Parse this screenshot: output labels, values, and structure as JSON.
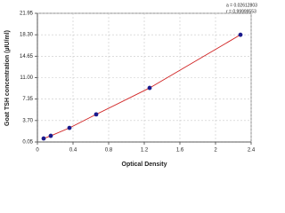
{
  "chart_data": {
    "type": "scatter",
    "x_label": "Optical Density",
    "y_label": "Goat TSH concentration (µIU/ml)",
    "annotations": [
      "a = 0.02612803",
      "r = 0.99999553"
    ],
    "series": [
      {
        "color": "#1a1a8c",
        "line_color": "#d02020",
        "x": [
          0.07,
          0.15,
          0.36,
          0.66,
          1.26,
          2.28
        ],
        "values": [
          0.65,
          1.1,
          2.45,
          4.75,
          9.25,
          18.3
        ]
      }
    ],
    "xlim": [
      0,
      2.4
    ],
    "xticks": [
      0,
      0.4,
      0.8,
      1.2,
      1.6,
      2,
      2.4
    ],
    "ylim": [
      0.05,
      21.95
    ],
    "yticks": [
      {
        "value": 0.05,
        "label": "0.05"
      },
      {
        "value": 3.7,
        "label": "3.70"
      },
      {
        "value": 7.35,
        "label": "7.35"
      },
      {
        "value": 11,
        "label": "11.00"
      },
      {
        "value": 14.65,
        "label": "14.65"
      },
      {
        "value": 18.3,
        "label": "18.30"
      },
      {
        "value": 21.95,
        "label": "21.95"
      }
    ],
    "grid": true
  }
}
